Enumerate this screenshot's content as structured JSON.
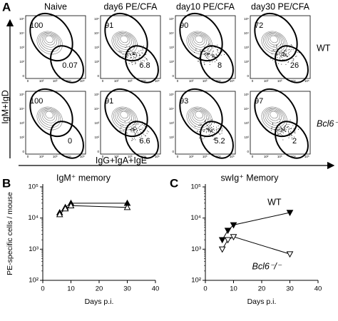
{
  "panel_a": {
    "label": "A",
    "columns": [
      "Naive",
      "day6 PE/CFA",
      "day10 PE/CFA",
      "day30 PE/CFA"
    ],
    "rows": [
      {
        "label": "WT",
        "gates": [
          [
            100,
            0.07
          ],
          [
            91,
            6.8
          ],
          [
            90,
            8
          ],
          [
            72,
            26
          ]
        ]
      },
      {
        "label": "Bcl6⁻/⁻",
        "gates": [
          [
            100,
            0
          ],
          [
            91,
            6.6
          ],
          [
            93,
            5.2
          ],
          [
            97,
            2
          ]
        ]
      }
    ],
    "y_label": "IgM+IgD",
    "x_label": "IgG+IgA+IgE",
    "ticks": [
      "0",
      "10²",
      "10³",
      "10⁴",
      "10⁵"
    ]
  },
  "chart_data": [
    {
      "type": "line",
      "label": "B",
      "title": "IgM⁺ memory",
      "x_label": "Days p.i.",
      "y_label": "PE-specific cells / mouse",
      "log_y": true,
      "xlim": [
        0,
        40
      ],
      "xticks": [
        0,
        10,
        20,
        30,
        40
      ],
      "ylim": [
        100,
        100000
      ],
      "yticks": [
        {
          "value": 100,
          "label": "10²"
        },
        {
          "value": 1000,
          "label": "10³"
        },
        {
          "value": 10000,
          "label": "10⁴"
        },
        {
          "value": 100000,
          "label": "10⁵"
        }
      ],
      "x": [
        6,
        8,
        10,
        30
      ],
      "series": [
        {
          "color": "#000000",
          "marker": "triangle-up",
          "filled": true,
          "values": [
            15000,
            22000,
            30000,
            30000
          ]
        },
        {
          "color": "#000000",
          "marker": "triangle-up",
          "filled": false,
          "values": [
            13000,
            20000,
            25000,
            22000
          ]
        }
      ]
    },
    {
      "type": "line",
      "label": "C",
      "title": "swIg⁺ Memory",
      "x_label": "Days p.i.",
      "log_y": true,
      "xlim": [
        0,
        40
      ],
      "xticks": [
        0,
        10,
        20,
        30,
        40
      ],
      "ylim": [
        100,
        100000
      ],
      "yticks": [
        {
          "value": 100,
          "label": "10²"
        },
        {
          "value": 1000,
          "label": "10³"
        },
        {
          "value": 10000,
          "label": "10⁴"
        },
        {
          "value": 100000,
          "label": "10⁵"
        }
      ],
      "x": [
        6,
        8,
        10,
        30
      ],
      "series": [
        {
          "name": "WT",
          "color": "#000000",
          "marker": "triangle-down",
          "filled": true,
          "values": [
            2000,
            4000,
            6000,
            15000
          ]
        },
        {
          "name": "Bcl6⁻/⁻",
          "color": "#000000",
          "marker": "triangle-down",
          "filled": false,
          "values": [
            1000,
            2000,
            2500,
            700
          ]
        }
      ]
    }
  ]
}
